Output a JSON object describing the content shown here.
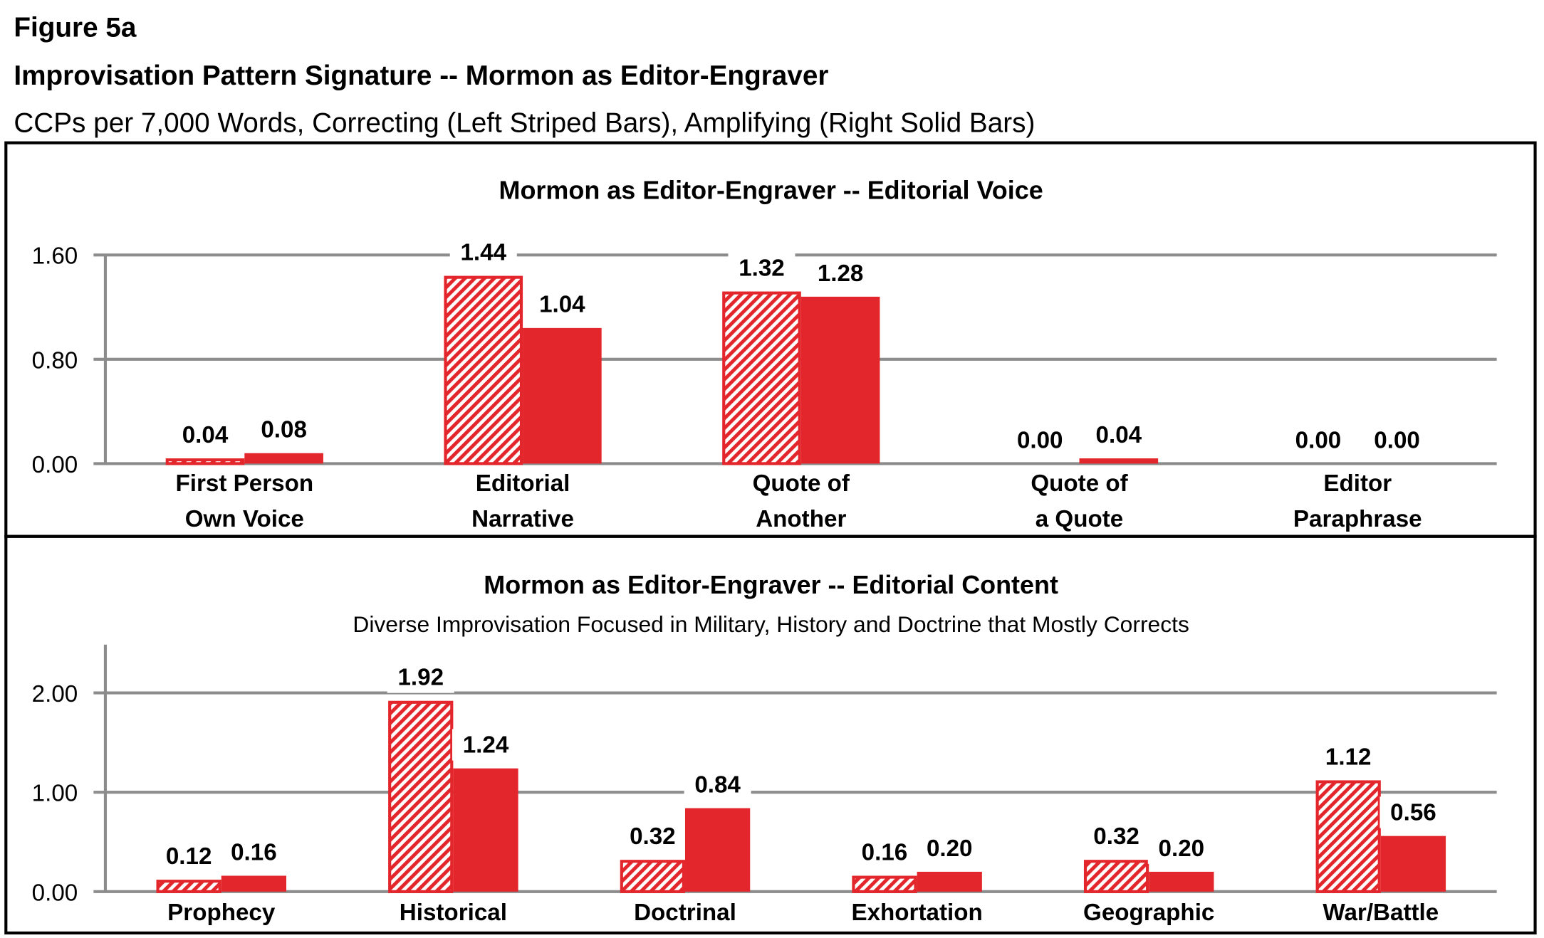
{
  "figure": {
    "label": "Figure 5a",
    "title": "Improvisation Pattern Signature -- Mormon as Editor-Engraver",
    "subtitle": "CCPs per 7,000 Words, Correcting (Left Striped Bars), Amplifying (Right Solid Bars)"
  },
  "colors": {
    "bar": "#e3262b",
    "grid": "#8c8c8c",
    "text": "#000000"
  },
  "chart_data": [
    {
      "type": "bar",
      "title": "Mormon as Editor-Engraver -- Editorial Voice",
      "subtitle": "",
      "categories": [
        [
          "First Person",
          "Own Voice"
        ],
        [
          "Editorial",
          "Narrative"
        ],
        [
          "Quote of",
          "Another"
        ],
        [
          "Quote of",
          "a Quote"
        ],
        [
          "Editor",
          "Paraphrase"
        ]
      ],
      "series": [
        {
          "name": "Correcting",
          "style": "striped",
          "values": [
            0.04,
            1.44,
            1.32,
            0.0,
            0.0
          ]
        },
        {
          "name": "Amplifying",
          "style": "solid",
          "values": [
            0.08,
            1.04,
            1.28,
            0.04,
            0.0
          ]
        }
      ],
      "yticks": [
        "0.00",
        "0.80",
        "1.60"
      ],
      "ytick_values": [
        0,
        0.8,
        1.6
      ],
      "ylim": [
        0,
        1.6
      ],
      "grid": true
    },
    {
      "type": "bar",
      "title": "Mormon as Editor-Engraver -- Editorial Content",
      "subtitle": "Diverse Improvisation Focused in Military, History and Doctrine that Mostly Corrects",
      "categories": [
        [
          "Prophecy"
        ],
        [
          "Historical"
        ],
        [
          "Doctrinal"
        ],
        [
          "Exhortation"
        ],
        [
          "Geographic"
        ],
        [
          "War/Battle"
        ]
      ],
      "series": [
        {
          "name": "Correcting",
          "style": "striped",
          "values": [
            0.12,
            1.92,
            0.32,
            0.16,
            0.32,
            1.12
          ]
        },
        {
          "name": "Amplifying",
          "style": "solid",
          "values": [
            0.16,
            1.24,
            0.84,
            0.2,
            0.2,
            0.56
          ]
        }
      ],
      "yticks": [
        "0.00",
        "1.00",
        "2.00"
      ],
      "ytick_values": [
        0,
        1,
        2
      ],
      "ylim": [
        0,
        2.0
      ],
      "grid": true
    }
  ]
}
